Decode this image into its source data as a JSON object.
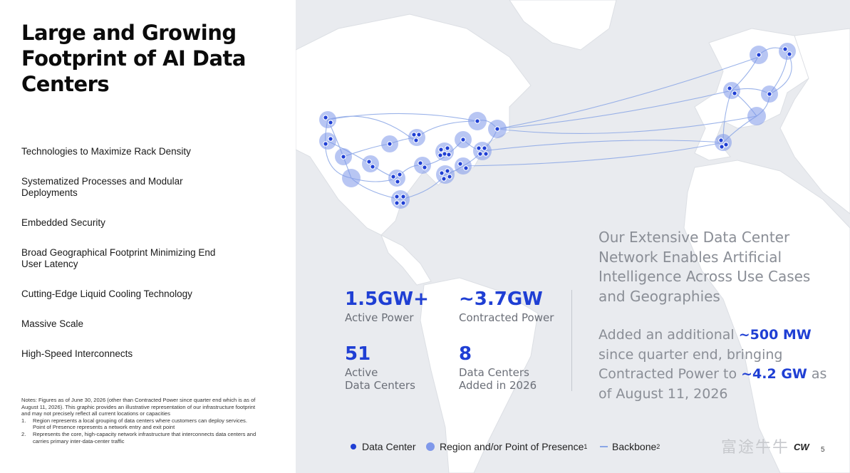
{
  "title": "Large and Growing Footprint of AI Data Centers",
  "features": [
    "Technologies to Maximize Rack Density",
    "Systematized Processes and Modular Deployments",
    "Embedded Security",
    "Broad Geographical Footprint Minimizing End User Latency",
    "Cutting-Edge Liquid Cooling Technology",
    "Massive Scale",
    "High-Speed Interconnects"
  ],
  "notes": {
    "intro": "Notes: Figures as of June 30, 2026 (other than Contracted Power since quarter end which is as of August 11, 2026). This graphic provides an illustrative representation of our infrastructure footprint and may not precisely reflect all current locations or capacities",
    "items": [
      {
        "num": "1.",
        "text": "Region represents a local grouping of data centers where customers can deploy services. Point of Presence represents a network entry and exit point"
      },
      {
        "num": "2.",
        "text": "Represents the core, high-capacity network infrastructure that interconnects data centers and carries primary inter-data-center traffic"
      }
    ]
  },
  "stats": {
    "active_power": {
      "value": "1.5GW+",
      "label": "Active Power"
    },
    "contracted_power": {
      "value": "~3.7GW",
      "label": "Contracted Power"
    },
    "active_dc": {
      "value": "51",
      "label": "Active\nData Centers"
    },
    "added_dc": {
      "value": "8",
      "label": "Data Centers\nAdded in 2026"
    }
  },
  "headline": "Our Extensive Data Center Network Enables Artificial Intelligence Across Use Cases and Geographies",
  "update": {
    "p1": "Added an additional ",
    "h1": "~500 MW",
    "p2": " since quarter end, bringing Contracted Power to ",
    "h2": "~4.2 GW",
    "p3": " as of August 11, 2026"
  },
  "legend": {
    "data_center": "Data Center",
    "region": "Region and/or Point of Presence",
    "region_sup": "1",
    "backbone": "Backbone",
    "backbone_sup": "2"
  },
  "page_number": "5",
  "logo_text": "CW",
  "watermark": "富途牛牛",
  "colors": {
    "accent": "#1f3fd4",
    "region": "#7f98ea",
    "backbone": "#8aa6e6"
  }
}
